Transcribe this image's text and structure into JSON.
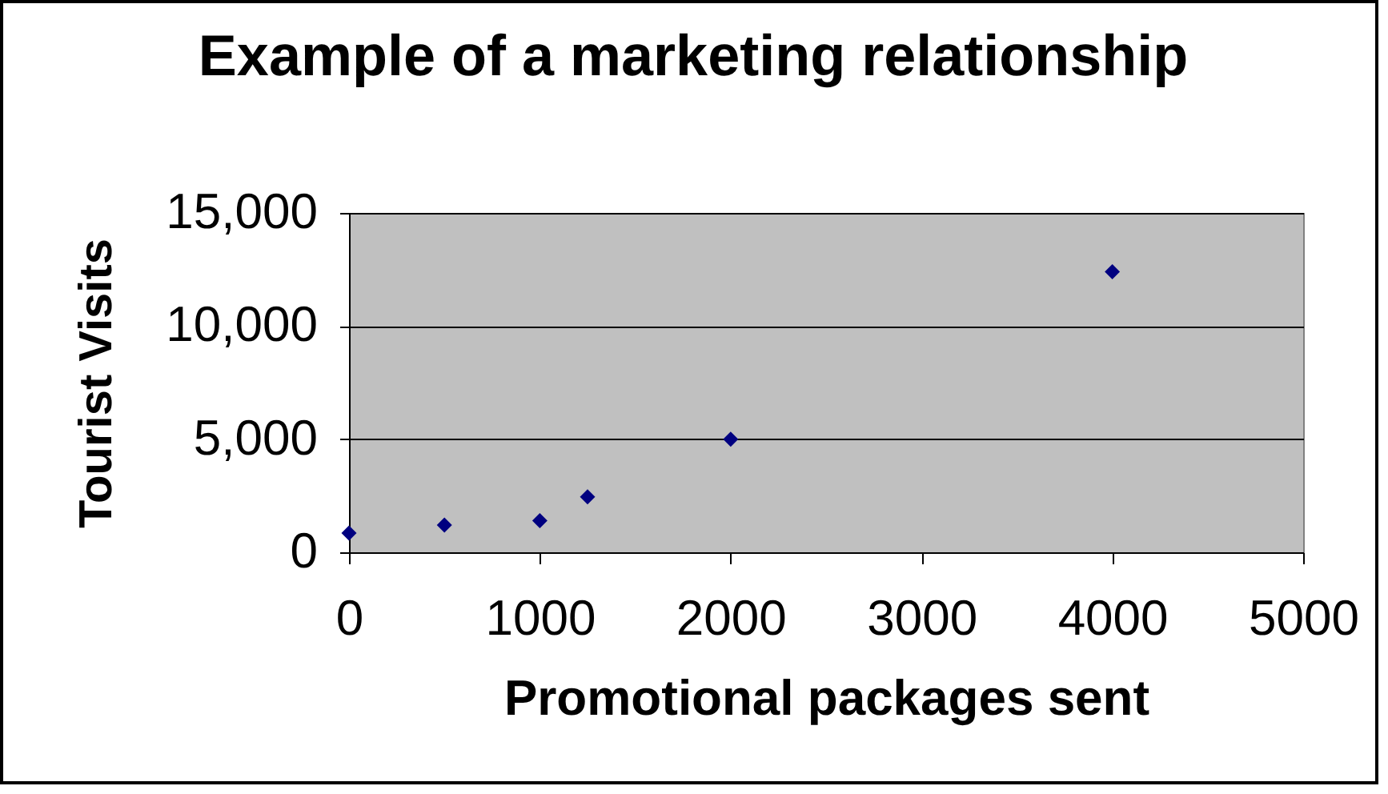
{
  "chart_data": {
    "type": "scatter",
    "title": "Example of a marketing relationship",
    "xlabel": "Promotional packages sent",
    "ylabel": "Tourist Visits",
    "x": [
      0,
      500,
      1000,
      1250,
      2000,
      4000
    ],
    "series": [
      {
        "color": "#000080",
        "values": [
          850,
          1200,
          1400,
          2450,
          5000,
          12400
        ]
      }
    ],
    "xlim": [
      0,
      5000
    ],
    "xticks": [
      0,
      1000,
      2000,
      3000,
      4000,
      5000
    ],
    "ylim": [
      0,
      15000
    ],
    "yticks": [
      {
        "value": 0,
        "label": "0"
      },
      {
        "value": 5000,
        "label": "5,000"
      },
      {
        "value": 10000,
        "label": "10,000"
      },
      {
        "value": 15000,
        "label": "15,000"
      }
    ],
    "grid": "y",
    "marker": "diamond",
    "legend": false
  }
}
